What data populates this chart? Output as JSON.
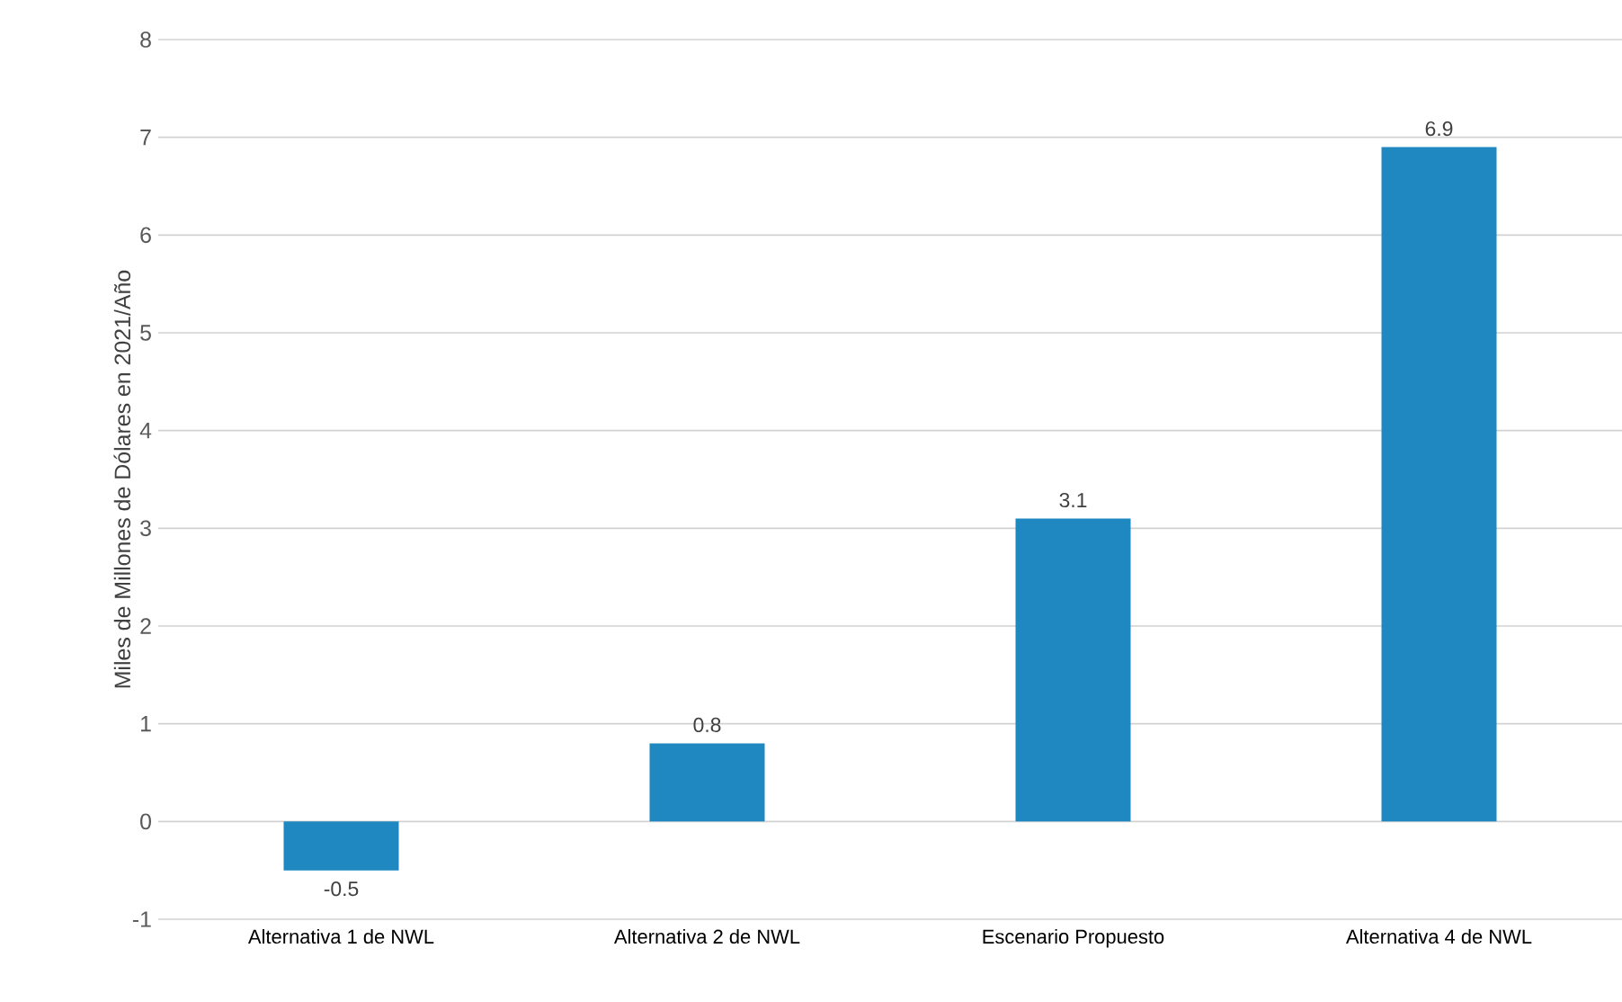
{
  "chart_data": {
    "type": "bar",
    "ylabel": "Miles de Millones de Dólares en 2021/Año",
    "categories": [
      "Alternativa 1 de NWL",
      "Alternativa 2 de NWL",
      "Escenario Propuesto",
      "Alternativa 4 de NWL"
    ],
    "values": [
      -0.5,
      0.8,
      3.1,
      6.9
    ],
    "color": "#1f88c0",
    "data_labels": true,
    "ylim": [
      -1,
      8
    ],
    "yticks": [
      -1,
      0,
      1,
      2,
      3,
      4,
      5,
      6,
      7,
      8
    ],
    "grid": "y"
  }
}
